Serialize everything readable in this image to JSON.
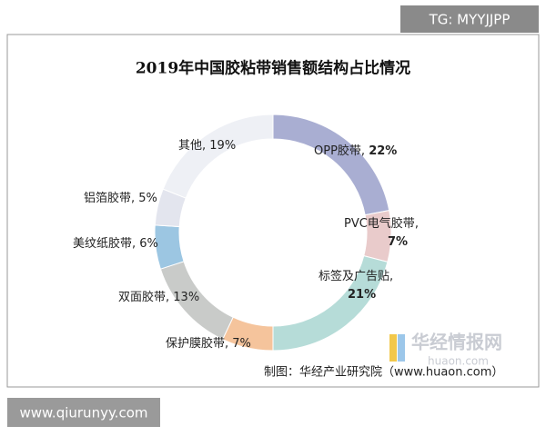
{
  "badge": "TG: MYYJJPP",
  "site": "www.qiurunyy.com",
  "watermark": "华经情报网",
  "watermark_url": "huaon.com",
  "chart_data": {
    "type": "donut",
    "title": "2019年中国胶粘带销售额结构占比情况",
    "source": "制图：华经产业研究院（www.huaon.com）",
    "label_separator": ", ",
    "categories": [
      "OPP胶带",
      "PVC电气胶带",
      "标签及广告贴",
      "保护膜胶带",
      "双面胶带",
      "美纹纸胶带",
      "铝箔胶带",
      "其他"
    ],
    "values": [
      22,
      7,
      21,
      7,
      13,
      6,
      5,
      19
    ],
    "value_labels": [
      "22%",
      "7%",
      "21%",
      "7%",
      "13%",
      "6%",
      "5%",
      "19%"
    ],
    "colors": [
      "#a9aed2",
      "#e9cbcb",
      "#b6dcd8",
      "#f5c49c",
      "#c9cbc9",
      "#9cc6e2",
      "#e3e5ee",
      "#eef0f5"
    ]
  }
}
